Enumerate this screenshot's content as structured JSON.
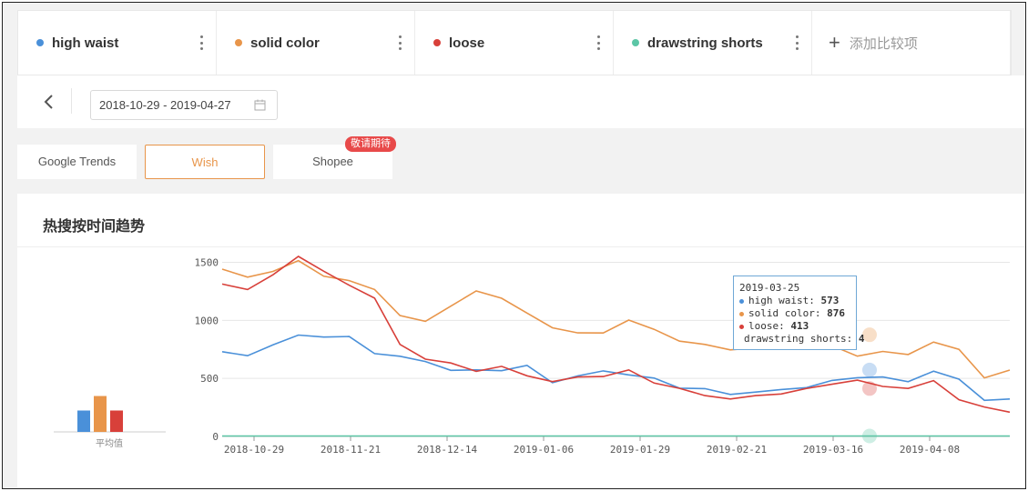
{
  "terms": [
    {
      "label": "high waist",
      "color": "#4a90d9"
    },
    {
      "label": "solid color",
      "color": "#e8954a"
    },
    {
      "label": "loose",
      "color": "#d8403a"
    },
    {
      "label": "drawstring shorts",
      "color": "#5cc6a6"
    }
  ],
  "add_term": {
    "label": "添加比较项",
    "icon": "plus-icon"
  },
  "date_range": {
    "value": "2018-10-29 - 2019-04-27",
    "icon": "calendar-icon"
  },
  "tabs": [
    {
      "label": "Google Trends",
      "active": false
    },
    {
      "label": "Wish",
      "active": true
    },
    {
      "label": "Shopee",
      "active": false,
      "badge": "敬请期待"
    }
  ],
  "panel": {
    "title": "热搜按时间趋势"
  },
  "avg_chart": {
    "label": "平均值"
  },
  "tooltip": {
    "date": "2019-03-25",
    "rows": [
      {
        "name": "high waist",
        "value": "573"
      },
      {
        "name": "solid color",
        "value": "876"
      },
      {
        "name": "loose",
        "value": "413"
      },
      {
        "name": "drawstring shorts",
        "value": "4"
      }
    ]
  },
  "chart_data": [
    {
      "type": "line",
      "xlabel": "",
      "ylabel": "",
      "x_ticks": [
        "2018-10-29",
        "2018-11-21",
        "2018-12-14",
        "2019-01-06",
        "2019-01-29",
        "2019-02-21",
        "2019-03-16",
        "2019-04-08"
      ],
      "y_ticks": [
        "0",
        "500",
        "1000",
        "1500"
      ],
      "ylim": [
        0,
        1700
      ],
      "grid": true,
      "series": [
        {
          "name": "high waist",
          "color": "#4a90d9",
          "values": [
            730,
            690,
            800,
            860,
            870,
            850,
            720,
            690,
            640,
            580,
            560,
            580,
            600,
            470,
            520,
            560,
            540,
            490,
            430,
            400,
            370,
            380,
            400,
            430,
            470,
            520,
            500,
            480,
            560,
            490,
            320,
            310
          ]
        },
        {
          "name": "solid color",
          "color": "#e8954a",
          "values": [
            1430,
            1380,
            1420,
            1510,
            1390,
            1330,
            1280,
            1030,
            1000,
            1120,
            1250,
            1200,
            1050,
            950,
            880,
            900,
            1000,
            920,
            830,
            780,
            760,
            750,
            820,
            900,
            780,
            700,
            720,
            720,
            800,
            760,
            500,
            570
          ]
        },
        {
          "name": "loose",
          "color": "#d8403a",
          "values": [
            1300,
            1280,
            1380,
            1560,
            1420,
            1300,
            1200,
            780,
            680,
            620,
            570,
            600,
            520,
            480,
            500,
            530,
            560,
            470,
            410,
            350,
            330,
            340,
            380,
            400,
            460,
            480,
            430,
            420,
            470,
            330,
            240,
            220
          ]
        },
        {
          "name": "drawstring shorts",
          "color": "#5cc6a6",
          "values": [
            4,
            4,
            4,
            4,
            4,
            4,
            4,
            4,
            4,
            4,
            4,
            4,
            4,
            4,
            4,
            4,
            4,
            4,
            4,
            4,
            4,
            4,
            4,
            4,
            4,
            4,
            4,
            4,
            4,
            4,
            4,
            4
          ]
        }
      ]
    },
    {
      "type": "bar",
      "xlabel": "平均值",
      "categories": [
        "high waist",
        "solid color",
        "loose"
      ],
      "values": [
        560,
        940,
        560
      ],
      "colors": [
        "#4a90d9",
        "#e8954a",
        "#d8403a"
      ]
    }
  ]
}
